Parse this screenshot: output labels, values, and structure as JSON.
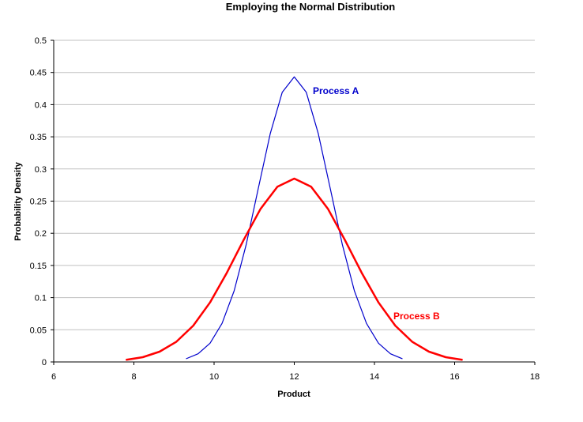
{
  "chart_data": {
    "type": "line",
    "title": "Employing the Normal Distribution",
    "xlabel": "Product",
    "ylabel": "Probability Density",
    "xlim": [
      6,
      18
    ],
    "ylim": [
      0,
      0.5
    ],
    "xticks": [
      6,
      8,
      10,
      12,
      14,
      16,
      18
    ],
    "yticks": [
      0,
      0.05,
      0.1,
      0.15,
      0.2,
      0.25,
      0.3,
      0.35,
      0.4,
      0.45,
      0.5
    ],
    "ytick_labels": [
      "0",
      "0.05",
      "0.1",
      "0.15",
      "0.2",
      "0.25",
      "0.3",
      "0.35",
      "0.4",
      "0.45",
      "0.5"
    ],
    "grid": "horizontal",
    "legend": "inline labels",
    "series": [
      {
        "name": "Process A",
        "color": "#0000cc",
        "x": [
          9.3,
          9.6,
          9.9,
          10.2,
          10.5,
          10.8,
          11.1,
          11.4,
          11.7,
          12.0,
          12.3,
          12.6,
          12.9,
          13.2,
          13.5,
          13.8,
          14.1,
          14.4,
          14.7
        ],
        "y": [
          0.0049,
          0.0127,
          0.0291,
          0.06,
          0.1106,
          0.1822,
          0.2689,
          0.3549,
          0.4193,
          0.4433,
          0.4193,
          0.3549,
          0.2689,
          0.1822,
          0.1106,
          0.06,
          0.0291,
          0.0127,
          0.0049
        ]
      },
      {
        "name": "Process B",
        "color": "#ff0000",
        "x": [
          7.8,
          8.22,
          8.64,
          9.06,
          9.48,
          9.9,
          10.32,
          10.74,
          11.16,
          11.58,
          12.0,
          12.42,
          12.84,
          13.26,
          13.68,
          14.1,
          14.52,
          14.94,
          15.36,
          15.78,
          16.2
        ],
        "y": [
          0.0032,
          0.0074,
          0.016,
          0.0314,
          0.0564,
          0.0925,
          0.1387,
          0.1901,
          0.2381,
          0.2725,
          0.285,
          0.2725,
          0.2381,
          0.1901,
          0.1387,
          0.0925,
          0.0564,
          0.0314,
          0.016,
          0.0074,
          0.0032
        ]
      }
    ]
  }
}
